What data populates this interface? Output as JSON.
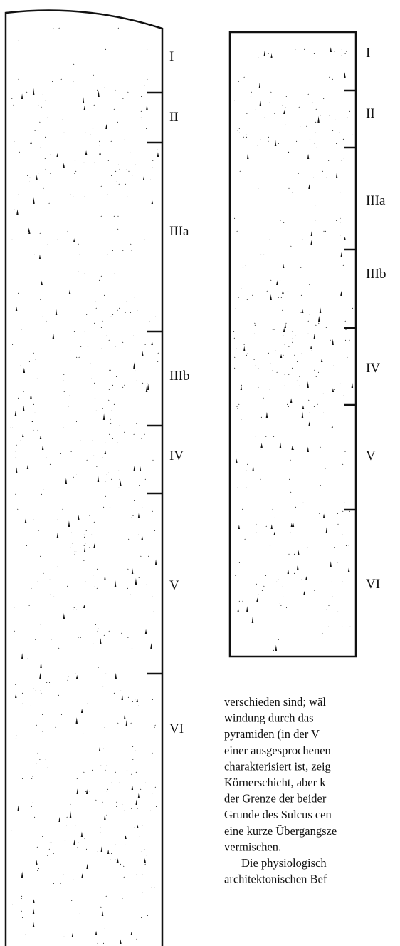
{
  "figure_left": {
    "layers": [
      "I",
      "II",
      "IIIa",
      "IIIb",
      "IV",
      "V",
      "VI"
    ]
  },
  "figure_right": {
    "layers": [
      "I",
      "II",
      "IIIa",
      "IIIb",
      "IV",
      "V",
      "VI"
    ]
  },
  "body_text": {
    "lines": [
      "verschieden sind; wäl",
      "windung durch das",
      "pyramiden (in der V",
      "einer ausgesprochenen",
      "charakterisiert ist, zeig",
      "Körnerschicht, aber k",
      "der Grenze der beider",
      "Grunde des Sulcus cen",
      "eine kurze Übergangsze",
      "vermischen.",
      "Die physiologisch",
      "architektonischen Bef"
    ]
  }
}
